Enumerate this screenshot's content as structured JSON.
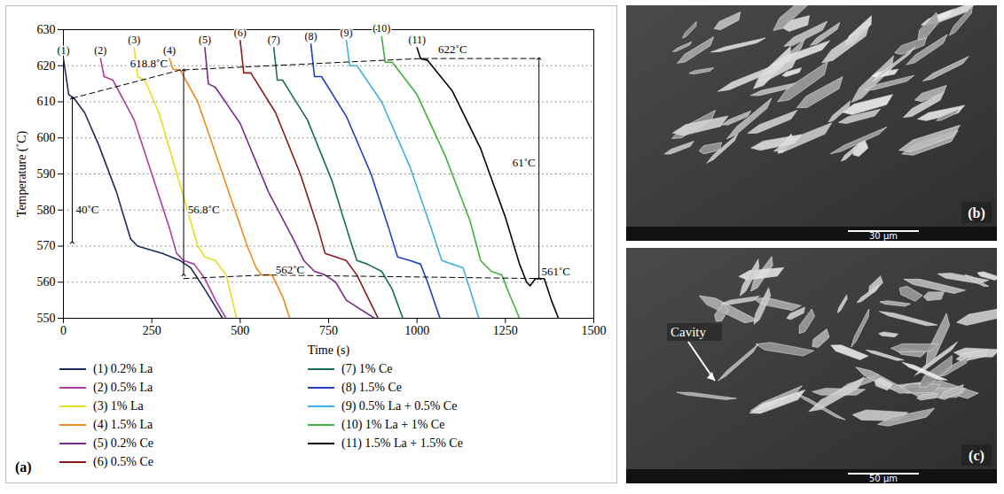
{
  "chart_data": {
    "type": "line",
    "x_label": "Time (s)",
    "y_label": "Temperature (˚C)",
    "xlim": [
      0,
      1500
    ],
    "xticks": [
      0,
      250,
      500,
      750,
      1000,
      1250,
      1500
    ],
    "ylim": [
      550,
      630
    ],
    "yticks": [
      550,
      560,
      570,
      580,
      590,
      600,
      610,
      620,
      630
    ],
    "grid": true,
    "legend": "bottom",
    "panel_label": "(a)",
    "series": [
      {
        "label": "(1)",
        "name": "0.2% La",
        "color": "#1f2a5c",
        "x": [
          0,
          15,
          30,
          60,
          100,
          150,
          190,
          210,
          280,
          330,
          360,
          400,
          450
        ],
        "values": [
          622,
          612,
          611,
          607,
          598,
          585,
          572,
          570,
          568,
          566,
          564,
          558,
          550
        ]
      },
      {
        "label": "(2)",
        "name": "0.5% La",
        "color": "#b03aa0",
        "x": [
          105,
          115,
          140,
          200,
          250,
          300,
          320,
          340,
          370,
          400,
          430,
          460
        ],
        "values": [
          622,
          617,
          616,
          605,
          590,
          575,
          568,
          566,
          565,
          561,
          555,
          550
        ]
      },
      {
        "label": "(3)",
        "name": "1% La",
        "color": "#e0e020",
        "x": [
          200,
          210,
          230,
          270,
          330,
          380,
          400,
          430,
          460,
          490
        ],
        "values": [
          625,
          617,
          616,
          607,
          587,
          570,
          567,
          566,
          562,
          550
        ]
      },
      {
        "label": "(4)",
        "name": "1.5% La",
        "color": "#f08a1c",
        "x": [
          300,
          310,
          330,
          380,
          450,
          520,
          545,
          560,
          590,
          620,
          640
        ],
        "values": [
          622,
          619,
          618.8,
          610,
          590,
          570,
          564,
          562,
          562,
          556,
          550
        ]
      },
      {
        "label": "(5)",
        "name": "0.2% Ce",
        "color": "#7a2a8a",
        "x": [
          400,
          410,
          430,
          500,
          580,
          650,
          680,
          710,
          740,
          770,
          800,
          880
        ],
        "values": [
          625,
          615,
          614,
          604,
          585,
          572,
          566,
          563,
          562,
          560,
          555,
          550
        ]
      },
      {
        "label": "(6)",
        "name": "0.5% Ce",
        "color": "#8b1a1a",
        "x": [
          500,
          510,
          530,
          600,
          670,
          720,
          740,
          770,
          800,
          830,
          860,
          890
        ],
        "values": [
          627,
          618,
          618,
          607,
          590,
          575,
          568,
          567,
          566,
          562,
          556,
          550
        ]
      },
      {
        "label": "(7)",
        "name": "1% Ce",
        "color": "#1a6b5a",
        "x": [
          595,
          605,
          620,
          690,
          760,
          810,
          830,
          860,
          900,
          930,
          960
        ],
        "values": [
          625,
          616,
          616,
          605,
          588,
          572,
          566,
          565,
          563,
          558,
          550
        ]
      },
      {
        "label": "(8)",
        "name": "1.5% Ce",
        "color": "#2040c0",
        "x": [
          700,
          710,
          730,
          800,
          870,
          920,
          945,
          980,
          1010,
          1030,
          1065
        ],
        "values": [
          626,
          617,
          617,
          606,
          590,
          575,
          567,
          566,
          565,
          560,
          550
        ]
      },
      {
        "label": "(9)",
        "name": "0.5% La + 0.5% Ce",
        "color": "#40b0e0",
        "x": [
          800,
          810,
          830,
          900,
          980,
          1040,
          1070,
          1100,
          1130,
          1150,
          1175
        ],
        "values": [
          627,
          620,
          620,
          610,
          592,
          575,
          566,
          565,
          564,
          558,
          550
        ]
      },
      {
        "label": "(10)",
        "name": "1% La + 1% Ce",
        "color": "#40b040",
        "x": [
          900,
          910,
          930,
          1000,
          1080,
          1150,
          1180,
          1210,
          1240,
          1260,
          1290
        ],
        "values": [
          628,
          621,
          621,
          612,
          595,
          577,
          566,
          563,
          562,
          557,
          550
        ]
      },
      {
        "label": "(11)",
        "name": "1.5% La + 1.5% Ce",
        "color": "#000000",
        "x": [
          1000,
          1010,
          1030,
          1100,
          1180,
          1250,
          1290,
          1310,
          1320,
          1335,
          1360,
          1380,
          1400
        ],
        "values": [
          625,
          622,
          621.5,
          613,
          597,
          578,
          565,
          560,
          559,
          561,
          561,
          555,
          550
        ]
      }
    ],
    "guides": [
      {
        "points": [
          [
            25,
            611
          ],
          [
            330,
            618.8
          ],
          [
            1010,
            622
          ],
          [
            1345,
            622
          ]
        ],
        "line_style": "dashed"
      },
      {
        "points": [
          [
            340,
            561
          ],
          [
            575,
            562
          ],
          [
            1345,
            561
          ]
        ],
        "line_style": "dashed"
      }
    ],
    "arrows": [
      {
        "x": 25,
        "y1": 571,
        "y2": 611
      },
      {
        "x": 340,
        "y1": 562,
        "y2": 618.8
      },
      {
        "x": 1345,
        "y1": 561,
        "y2": 622
      }
    ],
    "annotations": [
      {
        "text": "618.8˚C",
        "x": 295,
        "y": 620.5,
        "anchor": "end"
      },
      {
        "text": "622˚C",
        "x": 1060,
        "y": 624.5,
        "anchor": "start"
      },
      {
        "text": "562˚C",
        "x": 600,
        "y": 563.5,
        "anchor": "start"
      },
      {
        "text": "561˚C",
        "x": 1352,
        "y": 563,
        "anchor": "start"
      },
      {
        "text": "40˚C",
        "x": 35,
        "y": 580,
        "anchor": "start"
      },
      {
        "text": "56.8˚C",
        "x": 352,
        "y": 580,
        "anchor": "start"
      },
      {
        "text": "61˚C",
        "x": 1335,
        "y": 593,
        "anchor": "end"
      }
    ]
  },
  "images": [
    {
      "panel_label": "(b)",
      "scale_bar": "30 μm"
    },
    {
      "panel_label": "(c)",
      "scale_bar": "50 μm",
      "annotations": [
        "Cavity"
      ]
    }
  ]
}
